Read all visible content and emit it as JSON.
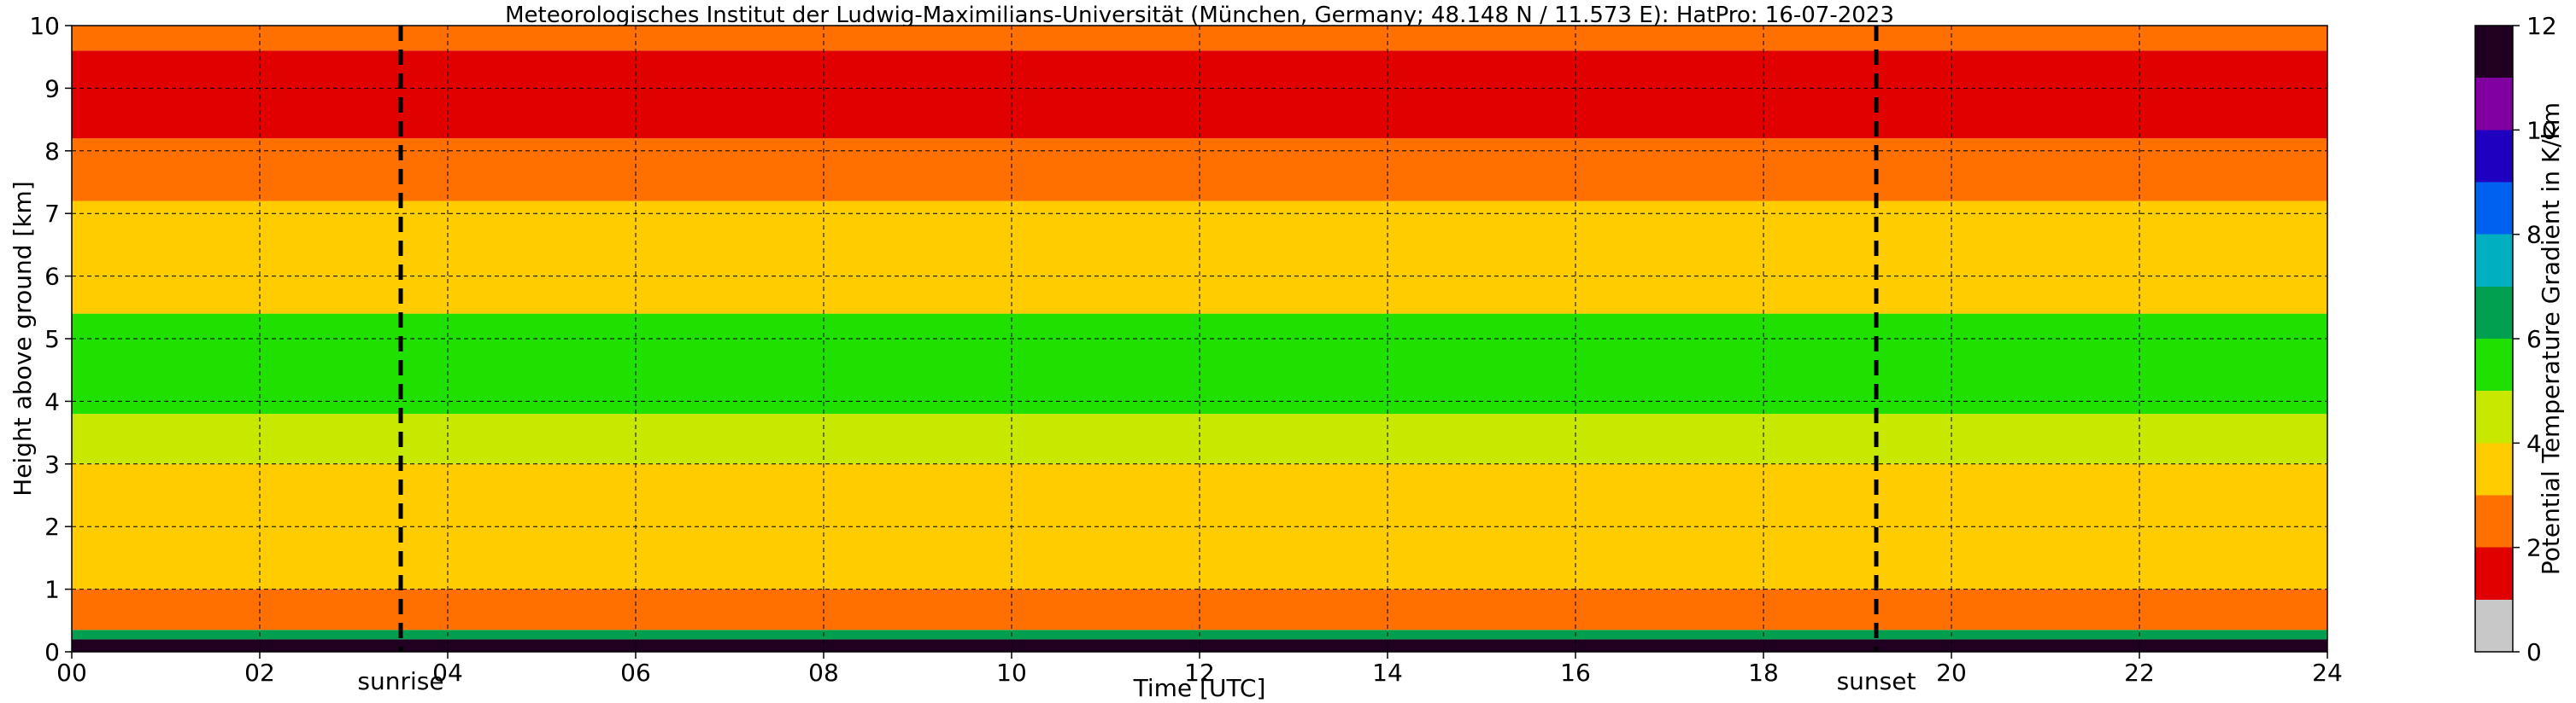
{
  "chart_data": {
    "type": "heatmap",
    "title": "Meteorologisches Institut der Ludwig-Maximilians-Universität (München, Germany; 48.148 N / 11.573 E):    HatPro: 16-07-2023",
    "xlabel": "Time [UTC]",
    "ylabel": "Height above ground [km]",
    "xlim": [
      0,
      24
    ],
    "ylim": [
      0,
      10
    ],
    "x_ticks": [
      "00",
      "02",
      "04",
      "06",
      "08",
      "10",
      "12",
      "14",
      "16",
      "18",
      "20",
      "22",
      "24"
    ],
    "y_ticks": [
      "0",
      "1",
      "2",
      "3",
      "4",
      "5",
      "6",
      "7",
      "8",
      "9",
      "10"
    ],
    "grid": true,
    "colorbar": {
      "label": "Potential Temperature Gradient in K/km",
      "range": [
        0,
        12
      ],
      "ticks": [
        "0",
        "2",
        "4",
        "6",
        "8",
        "10",
        "12"
      ]
    },
    "markers": [
      {
        "label": "sunrise",
        "time": 3.5,
        "style": "dashed"
      },
      {
        "label": "sunset",
        "time": 19.2,
        "style": "dashed"
      }
    ],
    "approx_profile_kkm": [
      {
        "height_km": [
          0.0,
          0.2
        ],
        "value": 12
      },
      {
        "height_km": [
          0.2,
          0.35
        ],
        "value": 6
      },
      {
        "height_km": [
          0.35,
          1.0
        ],
        "value": 2.5
      },
      {
        "height_km": [
          1.0,
          3.0
        ],
        "value": 3.5
      },
      {
        "height_km": [
          3.0,
          3.8
        ],
        "value": 4
      },
      {
        "height_km": [
          3.8,
          5.4
        ],
        "value": 5
      },
      {
        "height_km": [
          5.4,
          7.2
        ],
        "value": 3.5
      },
      {
        "height_km": [
          7.2,
          8.2
        ],
        "value": 2.5
      },
      {
        "height_km": [
          8.2,
          9.6
        ],
        "value": 1.5
      },
      {
        "height_km": [
          9.6,
          10.0
        ],
        "value": 2.5
      }
    ],
    "colors": {
      "colormap": [
        "#c8c8c8",
        "#e00000",
        "#ff7000",
        "#ffcc00",
        "#c8e800",
        "#20e000",
        "#00a050",
        "#00b0c0",
        "#0060f0",
        "#2000c0",
        "#8000a0",
        "#200020"
      ]
    }
  }
}
